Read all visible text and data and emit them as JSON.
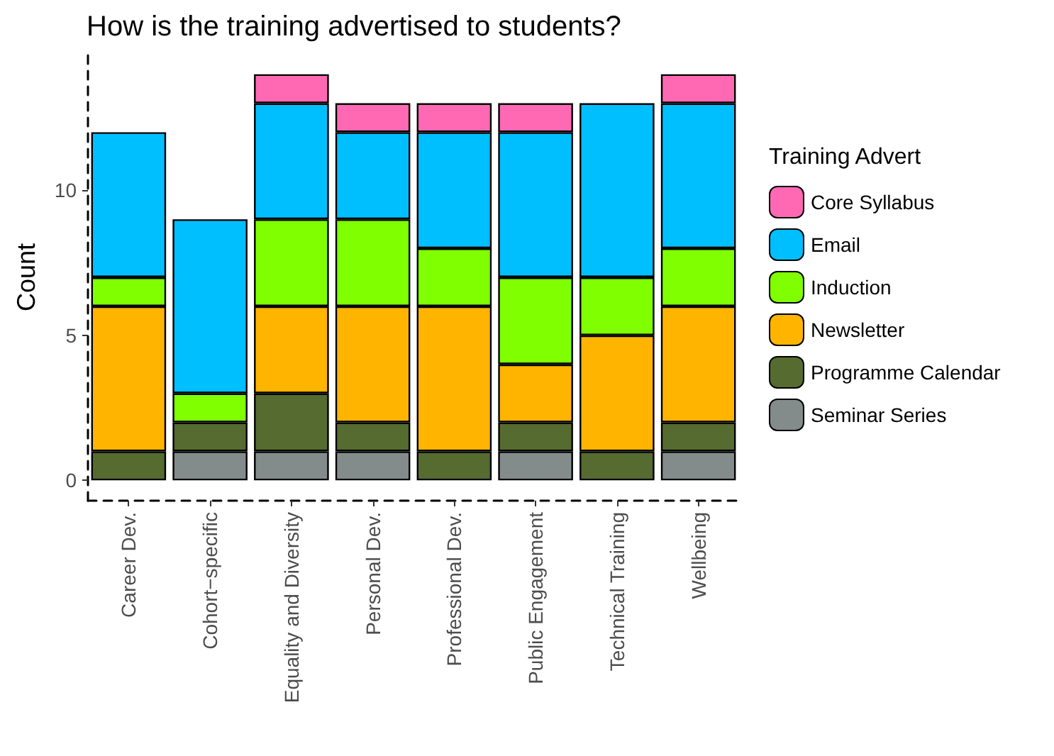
{
  "chart_data": {
    "type": "bar",
    "title": "How is the training advertised to students?",
    "ylabel": "Count",
    "legend_title": "Training Advert",
    "categories": [
      "Career Dev.",
      "Cohort−specific",
      "Equality and Diversity",
      "Personal Dev.",
      "Professional Dev.",
      "Public Engagement",
      "Technical Training",
      "Wellbeing"
    ],
    "stacked": true,
    "ylim": [
      -0.7,
      14.7
    ],
    "yticks": [
      0,
      5,
      10
    ],
    "grid": false,
    "legend": "right",
    "series": [
      {
        "name": "Seminar Series",
        "color": "#848b8b",
        "values": [
          0,
          1,
          1,
          1,
          0,
          1,
          0,
          1
        ]
      },
      {
        "name": "Programme Calendar",
        "color": "#556b2f",
        "values": [
          1,
          1,
          2,
          1,
          1,
          1,
          1,
          1
        ]
      },
      {
        "name": "Newsletter",
        "color": "#ffb400",
        "values": [
          5,
          0,
          3,
          4,
          5,
          2,
          4,
          4
        ]
      },
      {
        "name": "Induction",
        "color": "#7fff00",
        "values": [
          1,
          1,
          3,
          3,
          2,
          3,
          2,
          2
        ]
      },
      {
        "name": "Email",
        "color": "#00bfff",
        "values": [
          5,
          6,
          4,
          3,
          4,
          5,
          6,
          5
        ]
      },
      {
        "name": "Core Syllabus",
        "color": "#ff69b4",
        "values": [
          0,
          0,
          1,
          1,
          1,
          1,
          0,
          1
        ]
      }
    ]
  }
}
